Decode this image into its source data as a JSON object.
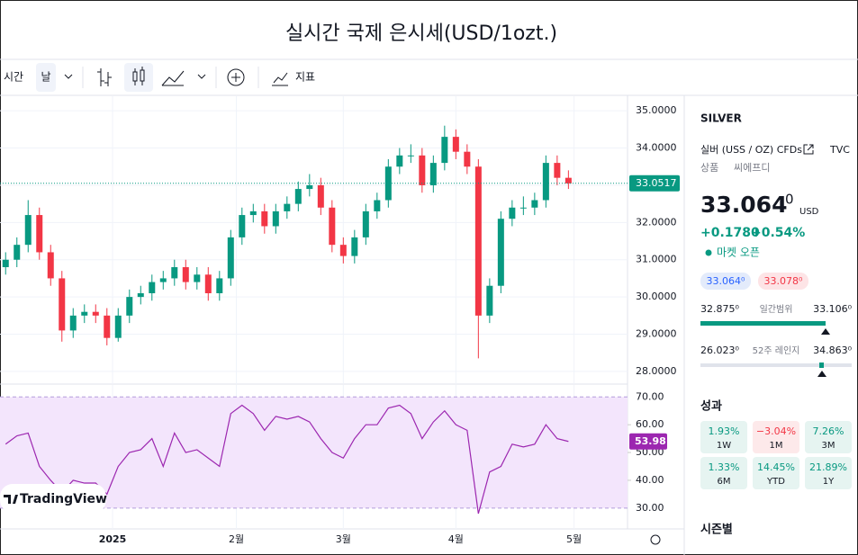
{
  "header": {
    "title": "실시간 국제 은시세(USD/1ozt.)"
  },
  "toolbar": {
    "interval": "시간",
    "timeframe": "날",
    "indicators": "지표"
  },
  "logo": "TradingView",
  "chart_data": [
    {
      "type": "candlestick",
      "x": [
        -19,
        -17,
        -15,
        -13,
        -11,
        -9,
        -7,
        -5,
        -3,
        -1,
        1,
        3,
        5,
        7,
        9,
        11,
        13,
        15,
        17,
        19,
        21,
        23,
        25,
        27,
        29,
        31,
        33,
        35,
        37,
        39,
        41,
        43,
        45,
        47,
        49,
        51,
        53,
        55,
        57,
        59,
        61,
        63,
        65,
        67,
        69,
        71,
        73,
        75,
        77,
        79,
        81
      ],
      "open": [
        30.8,
        31.0,
        31.4,
        32.2,
        31.2,
        30.5,
        29.1,
        29.5,
        29.6,
        29.5,
        28.9,
        29.5,
        30.0,
        30.1,
        30.4,
        30.5,
        30.8,
        30.4,
        30.6,
        30.1,
        30.5,
        31.6,
        32.2,
        32.3,
        31.9,
        32.3,
        32.5,
        32.9,
        33.0,
        32.4,
        31.4,
        31.1,
        31.6,
        32.3,
        32.6,
        33.5,
        33.8,
        33.8,
        33.0,
        33.6,
        34.3,
        33.9,
        33.5,
        29.5,
        30.3,
        32.1,
        32.4,
        32.4,
        32.6,
        33.6,
        33.2
      ],
      "high": [
        31.2,
        31.6,
        32.6,
        32.4,
        31.4,
        30.7,
        29.7,
        29.8,
        29.8,
        29.7,
        29.7,
        30.2,
        30.3,
        30.6,
        30.7,
        31.0,
        31.0,
        30.8,
        30.8,
        30.7,
        31.8,
        32.4,
        32.5,
        32.5,
        32.5,
        32.7,
        33.1,
        33.3,
        33.2,
        32.6,
        31.6,
        31.8,
        32.5,
        32.8,
        33.7,
        34.0,
        34.1,
        34.0,
        33.8,
        34.6,
        34.5,
        34.1,
        33.7,
        30.5,
        32.3,
        32.6,
        32.7,
        32.8,
        33.8,
        33.8,
        33.4
      ],
      "low": [
        30.6,
        30.8,
        31.2,
        31.0,
        30.3,
        28.8,
        28.9,
        29.3,
        29.3,
        28.7,
        28.8,
        29.3,
        29.8,
        29.9,
        30.2,
        30.3,
        30.2,
        30.2,
        29.9,
        29.9,
        30.3,
        31.4,
        32.0,
        31.7,
        31.7,
        32.1,
        32.3,
        32.7,
        32.2,
        31.2,
        30.9,
        30.9,
        31.4,
        32.1,
        32.4,
        33.3,
        33.6,
        32.8,
        32.8,
        33.4,
        33.7,
        33.3,
        28.35,
        29.3,
        30.1,
        31.9,
        32.2,
        32.2,
        32.4,
        33.0,
        32.9
      ],
      "close": [
        31.0,
        31.4,
        32.2,
        31.2,
        30.5,
        29.1,
        29.5,
        29.6,
        29.5,
        28.9,
        29.5,
        30.0,
        30.1,
        30.4,
        30.5,
        30.8,
        30.4,
        30.6,
        30.1,
        30.5,
        31.6,
        32.2,
        32.3,
        31.9,
        32.3,
        32.5,
        32.9,
        33.0,
        32.4,
        31.4,
        31.1,
        31.6,
        32.3,
        32.6,
        33.5,
        33.8,
        33.8,
        33.0,
        33.6,
        34.3,
        33.9,
        33.5,
        29.5,
        30.3,
        32.1,
        32.4,
        32.4,
        32.6,
        33.6,
        33.2,
        33.05
      ],
      "up_color": "#089981",
      "down_color": "#f23645",
      "xlim": [
        -20,
        91.5
      ],
      "xticks": [
        {
          "value": 0,
          "label": "2025"
        },
        {
          "value": 22,
          "label": "2월"
        },
        {
          "value": 41,
          "label": "3월"
        },
        {
          "value": 61,
          "label": "4월"
        },
        {
          "value": 82,
          "label": "5월"
        }
      ],
      "ylim": [
        27.66,
        35.39
      ],
      "yticks": [
        {
          "value": 28,
          "label": "28.0000"
        },
        {
          "value": 29,
          "label": "29.0000"
        },
        {
          "value": 30,
          "label": "30.0000"
        },
        {
          "value": 31,
          "label": "31.0000"
        },
        {
          "value": 32,
          "label": "32.0000"
        },
        {
          "value": 33,
          "label": "33.0000"
        },
        {
          "value": 34,
          "label": "34.0000"
        },
        {
          "value": 35,
          "label": "35.0000"
        }
      ],
      "last_price": 33.0517,
      "grid": true
    },
    {
      "type": "line",
      "x": [
        -19,
        -17,
        -15,
        -13,
        -11,
        -9,
        -7,
        -5,
        -3,
        -1,
        1,
        3,
        5,
        7,
        9,
        11,
        13,
        15,
        17,
        19,
        21,
        23,
        25,
        27,
        29,
        31,
        33,
        35,
        37,
        39,
        41,
        43,
        45,
        47,
        49,
        51,
        53,
        55,
        57,
        59,
        61,
        63,
        65,
        67,
        69,
        71,
        73,
        75,
        77,
        79,
        81
      ],
      "values": [
        53,
        56,
        57,
        45,
        40,
        35.6,
        40,
        39,
        39,
        35,
        45,
        50,
        51,
        55,
        45,
        57,
        50,
        51,
        48,
        45,
        64,
        67,
        64,
        58,
        63,
        62,
        63,
        61,
        55,
        50,
        48,
        55,
        60,
        60,
        66,
        67,
        64,
        55,
        61,
        65,
        60,
        58,
        28,
        43,
        45,
        53,
        52,
        53,
        60,
        55,
        53.98
      ],
      "color": "#9c27b0",
      "xlim": [
        -20,
        91.5
      ],
      "ylim": [
        22.5,
        74.3
      ],
      "yticks": [
        {
          "value": 30,
          "label": "30.00"
        },
        {
          "value": 40,
          "label": "40.00"
        },
        {
          "value": 50,
          "label": "50.00"
        },
        {
          "value": 60,
          "label": "60.00"
        },
        {
          "value": 70,
          "label": "70.00"
        }
      ]
    }
  ],
  "sidebar": {
    "symbol": "SILVER",
    "description": "실버 (USS / OZ) CFDs",
    "exchange": "TVC",
    "category": "상품",
    "subcategory": "씨에프디",
    "price": "33.064",
    "price_sup": "0",
    "currency": "USD",
    "change": "+0.1780",
    "change_pct": "+0.54%",
    "status": "마켓 오픈",
    "bid": "33.064⁰",
    "ask": "33.078⁰",
    "day_low": "32.875⁰",
    "day_range_label": "일간범위",
    "day_high": "33.106⁰",
    "week52_low": "26.023⁰",
    "week52_label": "52주 레인지",
    "week52_high": "34.863⁰",
    "performance_title": "성과",
    "performance": [
      {
        "value": "1.93%",
        "period": "1W"
      },
      {
        "value": "−3.04%",
        "period": "1M"
      },
      {
        "value": "7.26%",
        "period": "3M"
      },
      {
        "value": "1.33%",
        "period": "6M"
      },
      {
        "value": "14.45%",
        "period": "YTD"
      },
      {
        "value": "21.89%",
        "period": "1Y"
      }
    ],
    "seasonal_title": "시즌별"
  }
}
